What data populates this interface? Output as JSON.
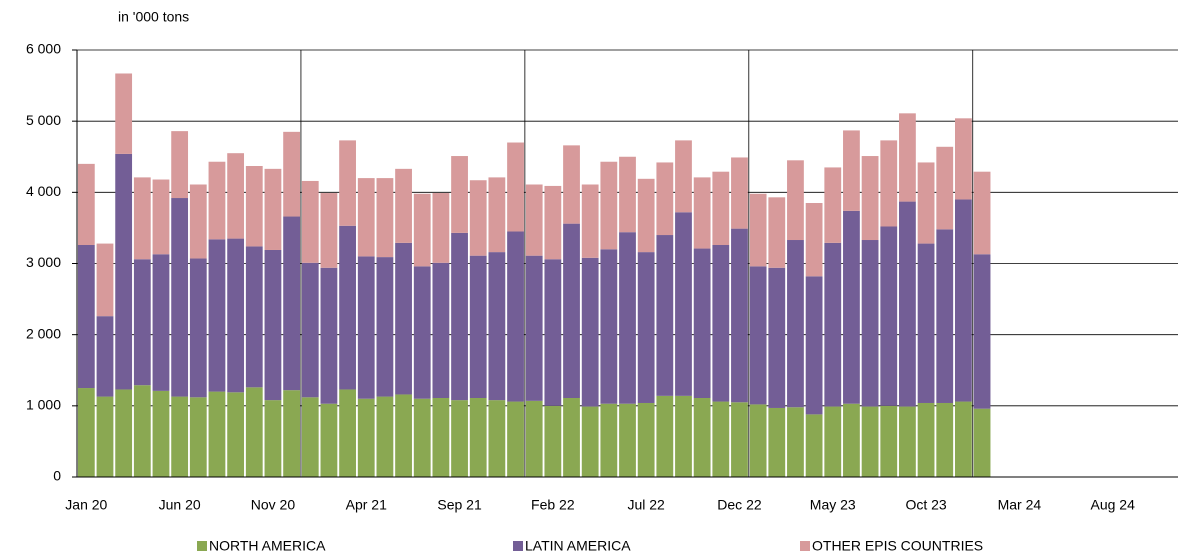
{
  "chart_data": {
    "type": "stacked_bar",
    "y_axis_label": "in '000 tons",
    "categories": [
      "Jan 20",
      null,
      null,
      null,
      null,
      "Jun 20",
      null,
      null,
      null,
      null,
      "Nov 20",
      null,
      null,
      null,
      null,
      "Apr 21",
      null,
      null,
      null,
      null,
      "Sep 21",
      null,
      null,
      null,
      null,
      "Feb 22",
      null,
      null,
      null,
      null,
      "Jul 22",
      null,
      null,
      null,
      null,
      "Dec 22",
      null,
      null,
      null,
      null,
      "May 23",
      null,
      null,
      null,
      null,
      "Oct 23",
      null,
      null,
      null,
      null,
      "Mar 24",
      null,
      null,
      null,
      null,
      "Aug 24",
      null,
      null,
      null
    ],
    "series": [
      {
        "name": "NORTH AMERICA",
        "color": "#8aa852",
        "values": [
          1250,
          1130,
          1230,
          1290,
          1210,
          1130,
          1120,
          1200,
          1190,
          1260,
          1080,
          1220,
          1120,
          1030,
          1230,
          1100,
          1130,
          1160,
          1100,
          1110,
          1080,
          1110,
          1080,
          1060,
          1070,
          1000,
          1110,
          990,
          1030,
          1030,
          1040,
          1140,
          1140,
          1110,
          1060,
          1050,
          1020,
          970,
          980,
          880,
          990,
          1030,
          990,
          1000,
          990,
          1040,
          1040,
          1060,
          960,
          null,
          null,
          null,
          null,
          null,
          null,
          null,
          null,
          null,
          null
        ]
      },
      {
        "name": "LATIN AMERICA",
        "color": "#735e96",
        "values": [
          2010,
          1130,
          3310,
          1770,
          1920,
          2790,
          1950,
          2140,
          2160,
          1980,
          2110,
          2440,
          1890,
          1910,
          2300,
          2000,
          1960,
          2130,
          1860,
          1900,
          2350,
          2000,
          2080,
          2390,
          2040,
          2060,
          2450,
          2090,
          2170,
          2410,
          2120,
          2260,
          2580,
          2100,
          2200,
          2440,
          1940,
          1970,
          2350,
          1940,
          2300,
          2710,
          2340,
          2520,
          2880,
          2240,
          2440,
          2840,
          2170,
          null,
          null,
          null,
          null,
          null,
          null,
          null,
          null,
          null,
          null
        ]
      },
      {
        "name": "OTHER EPIS COUNTRIES",
        "color": "#d79a9b",
        "values": [
          1140,
          1020,
          1130,
          1150,
          1050,
          940,
          1040,
          1090,
          1200,
          1130,
          1140,
          1190,
          1150,
          1050,
          1200,
          1100,
          1110,
          1040,
          1020,
          980,
          1080,
          1060,
          1050,
          1250,
          1000,
          1030,
          1100,
          1030,
          1230,
          1060,
          1030,
          1020,
          1010,
          1000,
          1030,
          1000,
          1020,
          990,
          1120,
          1030,
          1060,
          1130,
          1180,
          1210,
          1240,
          1140,
          1160,
          1140,
          1160,
          null,
          null,
          null,
          null,
          null,
          null,
          null,
          null,
          null,
          null
        ]
      }
    ],
    "ylim": [
      0,
      6000
    ],
    "yticks": [
      0,
      {
        "value": 1000,
        "label": "1 000"
      },
      {
        "value": 2000,
        "label": "2 000"
      },
      {
        "value": 3000,
        "label": "3 000"
      },
      {
        "value": 4000,
        "label": "4 000"
      },
      {
        "value": 5000,
        "label": "5 000"
      },
      {
        "value": 6000,
        "label": "6 000"
      }
    ],
    "grid": true,
    "legend": "bottom"
  }
}
